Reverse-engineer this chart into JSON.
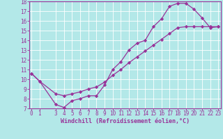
{
  "title": "",
  "xlabel": "Windchill (Refroidissement éolien,°C)",
  "background_color": "#b3e8e8",
  "line_color": "#993399",
  "x_line1": [
    0,
    1,
    3,
    4,
    5,
    6,
    7,
    8,
    9,
    10,
    11,
    12,
    13,
    14,
    15,
    16,
    17,
    18,
    19,
    20,
    21,
    22,
    23
  ],
  "y_line1": [
    10.6,
    9.8,
    7.4,
    7.1,
    7.8,
    8.0,
    8.3,
    8.3,
    9.4,
    11.0,
    11.8,
    13.0,
    13.7,
    14.0,
    15.4,
    16.2,
    17.5,
    17.8,
    17.8,
    17.2,
    16.3,
    15.3,
    15.4
  ],
  "x_line2": [
    0,
    1,
    3,
    4,
    5,
    6,
    7,
    8,
    9,
    10,
    11,
    12,
    13,
    14,
    15,
    16,
    17,
    18,
    19,
    20,
    21,
    22,
    23
  ],
  "y_line2": [
    10.6,
    9.8,
    8.5,
    8.3,
    8.5,
    8.7,
    9.0,
    9.2,
    9.7,
    10.4,
    11.0,
    11.7,
    12.3,
    12.9,
    13.5,
    14.1,
    14.7,
    15.3,
    15.4,
    15.4,
    15.4,
    15.4,
    15.4
  ],
  "xlim": [
    -0.3,
    23.3
  ],
  "ylim": [
    7,
    18
  ],
  "yticks": [
    7,
    8,
    9,
    10,
    11,
    12,
    13,
    14,
    15,
    16,
    17,
    18
  ],
  "xticks": [
    0,
    1,
    3,
    4,
    5,
    6,
    7,
    8,
    9,
    10,
    11,
    12,
    13,
    14,
    15,
    16,
    17,
    18,
    19,
    20,
    21,
    22,
    23
  ],
  "marker": "D",
  "markersize": 2.2,
  "linewidth": 0.9,
  "tick_fontsize": 5.5,
  "xlabel_fontsize": 6.0
}
